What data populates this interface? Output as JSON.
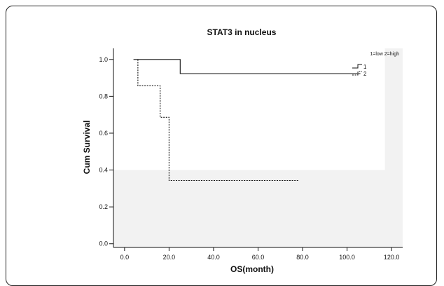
{
  "chart_data": {
    "type": "line",
    "step": true,
    "title": "STAT3 in nucleus",
    "xlabel": "OS(month)",
    "ylabel": "Cum Survival",
    "xlim": [
      -5,
      125
    ],
    "ylim": [
      -0.02,
      1.06
    ],
    "x_ticks": [
      0,
      20,
      40,
      60,
      80,
      100,
      120
    ],
    "x_tick_labels": [
      "0.0",
      "20.0",
      "40.0",
      "60.0",
      "80.0",
      "100.0",
      "120.0"
    ],
    "y_ticks": [
      0,
      0.2,
      0.4,
      0.6,
      0.8,
      1.0
    ],
    "y_tick_labels": [
      "0.0",
      "0.2",
      "0.4",
      "0.6",
      "0.8",
      "1.0"
    ],
    "legend_title": "1=low 2=high",
    "legend_position": "top-right",
    "series": [
      {
        "name": "1",
        "style": "solid",
        "color": "#111111",
        "points": [
          [
            4,
            1.0
          ],
          [
            25,
            1.0
          ],
          [
            25,
            0.923
          ],
          [
            106,
            0.923
          ]
        ]
      },
      {
        "name": "2",
        "style": "dotted",
        "color": "#111111",
        "points": [
          [
            6,
            1.0
          ],
          [
            6,
            0.857
          ],
          [
            16,
            0.857
          ],
          [
            16,
            0.686
          ],
          [
            20,
            0.686
          ],
          [
            20,
            0.343
          ],
          [
            78,
            0.343
          ]
        ]
      }
    ],
    "legend_labels": [
      "1",
      "2"
    ]
  },
  "colors": {
    "plot_background": "#f2f2f2",
    "frame": "#222222"
  }
}
